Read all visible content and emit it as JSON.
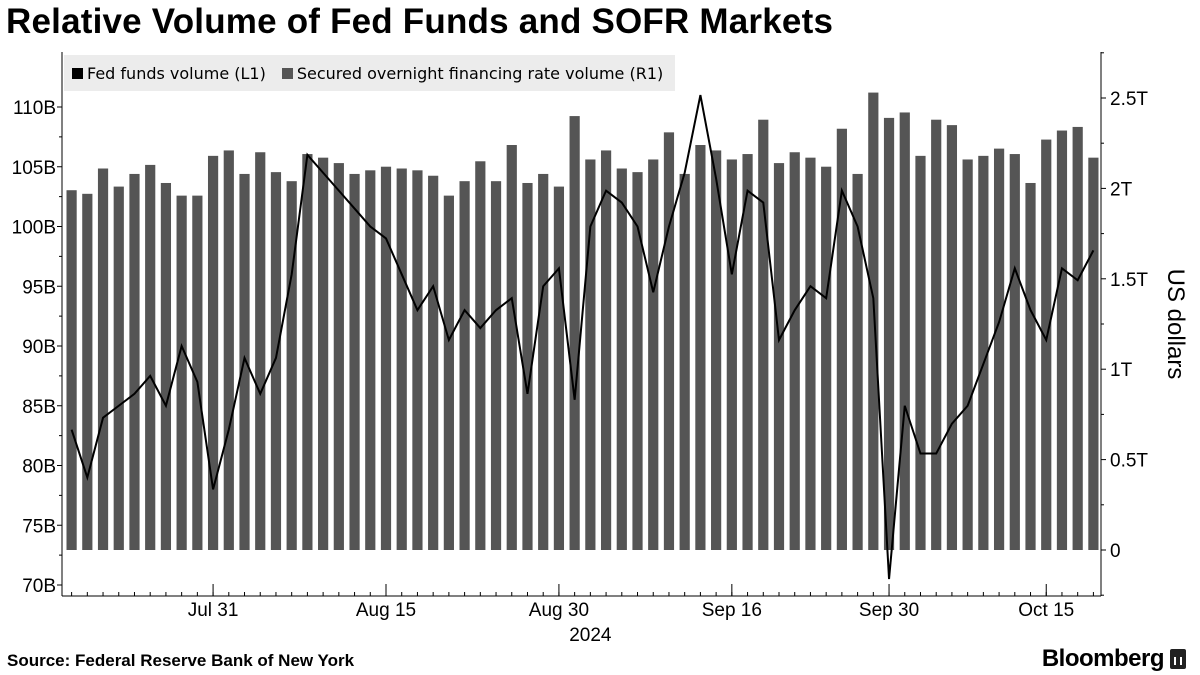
{
  "title": "Relative Volume of Fed Funds and SOFR Markets",
  "source": "Source: Federal Reserve Bank of New York",
  "brand": "Bloomberg",
  "colors": {
    "line": "#000000",
    "bars": "#555555",
    "axis": "#000000"
  },
  "chart_data": {
    "type": "bar",
    "legend": [
      {
        "label": "Fed funds volume (L1)",
        "color": "#000000"
      },
      {
        "label": "Secured overnight financing rate volume (R1)",
        "color": "#555555"
      }
    ],
    "left_axis": {
      "ticks": [
        70,
        75,
        80,
        85,
        90,
        95,
        100,
        105,
        110
      ],
      "tick_labels": [
        "70B",
        "75B",
        "80B",
        "85B",
        "90B",
        "95B",
        "100B",
        "105B",
        "110B"
      ],
      "ylim": [
        70,
        112
      ],
      "unit": "B"
    },
    "right_axis": {
      "ticks": [
        0,
        0.5,
        1,
        1.5,
        2,
        2.5
      ],
      "tick_labels": [
        "0",
        "0.5T",
        "1T",
        "1.5T",
        "2T",
        "2.5T"
      ],
      "ylim": [
        -0.25,
        2.75
      ],
      "label": "US dollars"
    },
    "x_ticks": [
      {
        "label": "Jul 31",
        "index": 9
      },
      {
        "label": "Aug 15",
        "index": 20
      },
      {
        "label": "Aug 30",
        "index": 31
      },
      {
        "label": "Sep 16",
        "index": 42
      },
      {
        "label": "Sep 30",
        "index": 52
      },
      {
        "label": "Oct 15",
        "index": 62
      }
    ],
    "year_label": "2024",
    "series": [
      {
        "name": "Secured overnight financing rate volume (R1)",
        "type": "bar",
        "axis": "right",
        "values": [
          1.99,
          1.97,
          2.11,
          2.01,
          2.08,
          2.13,
          2.03,
          1.96,
          1.96,
          2.18,
          2.21,
          2.08,
          2.2,
          2.09,
          2.04,
          2.19,
          2.17,
          2.14,
          2.08,
          2.1,
          2.12,
          2.11,
          2.1,
          2.07,
          1.96,
          2.04,
          2.15,
          2.04,
          2.24,
          2.03,
          2.08,
          2.01,
          2.4,
          2.16,
          2.21,
          2.11,
          2.09,
          2.16,
          2.31,
          2.08,
          2.24,
          2.21,
          2.16,
          2.19,
          2.38,
          2.14,
          2.2,
          2.17,
          2.12,
          2.33,
          2.08,
          2.53,
          2.39,
          2.42,
          2.18,
          2.38,
          2.35,
          2.16,
          2.18,
          2.22,
          2.19,
          2.03,
          2.27,
          2.32,
          2.34,
          2.17
        ]
      },
      {
        "name": "Fed funds volume (L1)",
        "type": "line",
        "axis": "left",
        "values": [
          83,
          79,
          84,
          85,
          86,
          87.5,
          85,
          90,
          87,
          78,
          83,
          89,
          86,
          89,
          96,
          106,
          104.5,
          103,
          101.5,
          100,
          99,
          96,
          93,
          95,
          90.5,
          93,
          91.5,
          93,
          94,
          86,
          95,
          96.5,
          85.5,
          100,
          103,
          102,
          100,
          94.5,
          100,
          104.5,
          111,
          104,
          96,
          103,
          102,
          90.5,
          93,
          95,
          94,
          103,
          100,
          94,
          70.5,
          85,
          81,
          81,
          83.5,
          85,
          88.5,
          92,
          96.5,
          93,
          90.5,
          96.5,
          95.5,
          98
        ]
      }
    ]
  }
}
